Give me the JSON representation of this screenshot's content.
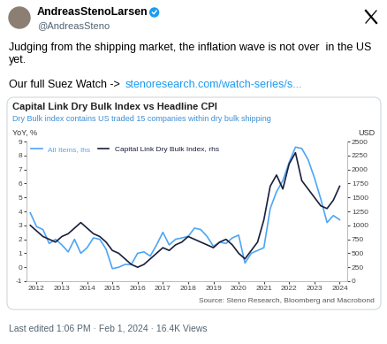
{
  "tweet": {
    "author": "AndreasStenoLarsen",
    "handle": "@AndreasSteno",
    "text": "Judging from the shipping market, the inflation wave is not over  in the US yet.",
    "link_prefix": "Our full Suez Watch ->",
    "link": "stenoresearch.com/watch-series/s...",
    "footer": "Last edited 1:06 PM · Feb 1, 2024 · 16.4K Views"
  },
  "chart_data": {
    "type": "line",
    "title": "Capital Link Dry Bulk Index vs Headline CPI",
    "subtitle": "Dry Bulk index contains US traded 15 companies within dry bulk shipping",
    "y_label": "YoY, %",
    "y2_label": "USD",
    "source": "Source: Steno Research, Bloomberg and Macrobond",
    "x": [
      2011.75,
      2012.0,
      2012.25,
      2012.5,
      2012.75,
      2013.0,
      2013.25,
      2013.5,
      2013.75,
      2014.0,
      2014.25,
      2014.5,
      2014.75,
      2015.0,
      2015.25,
      2015.5,
      2015.75,
      2016.0,
      2016.25,
      2016.5,
      2016.75,
      2017.0,
      2017.25,
      2017.5,
      2017.75,
      2018.0,
      2018.25,
      2018.5,
      2018.75,
      2019.0,
      2019.25,
      2019.5,
      2019.75,
      2020.0,
      2020.25,
      2020.5,
      2020.75,
      2021.0,
      2021.25,
      2021.5,
      2021.75,
      2022.0,
      2022.25,
      2022.5,
      2022.75,
      2023.0,
      2023.25,
      2023.5,
      2023.75,
      2024.0
    ],
    "series": [
      {
        "name": "All Items, lhs",
        "color": "#4da6f5",
        "line_style": "solid",
        "values": [
          3.9,
          2.9,
          2.7,
          1.7,
          2.0,
          1.6,
          1.1,
          2.0,
          1.0,
          1.4,
          2.1,
          2.0,
          1.3,
          -0.1,
          0.0,
          0.2,
          0.2,
          1.0,
          1.1,
          0.8,
          1.6,
          2.5,
          1.6,
          2.0,
          2.1,
          2.2,
          2.8,
          2.7,
          2.2,
          1.5,
          1.8,
          1.7,
          2.1,
          2.3,
          0.3,
          1.0,
          1.2,
          1.4,
          4.2,
          5.4,
          6.2,
          7.5,
          8.6,
          8.5,
          7.7,
          6.4,
          4.9,
          3.2,
          3.7,
          3.4
        ]
      },
      {
        "name": "Capital Link Dry Bulk Index, rhs",
        "color": "#1a1f3c",
        "line_style": "solid",
        "axis": "y2",
        "values": [
          1000,
          900,
          800,
          750,
          700,
          800,
          850,
          950,
          1050,
          950,
          850,
          800,
          700,
          550,
          500,
          400,
          300,
          250,
          300,
          400,
          500,
          600,
          550,
          650,
          700,
          800,
          750,
          700,
          650,
          600,
          700,
          750,
          650,
          500,
          400,
          550,
          700,
          1100,
          1700,
          1900,
          1650,
          2100,
          2300,
          1800,
          1650,
          1500,
          1350,
          1300,
          1450,
          1700
        ]
      }
    ],
    "xlim": [
      2011.6,
      2024.3
    ],
    "xticks": [
      2012,
      2013,
      2014,
      2015,
      2016,
      2017,
      2018,
      2019,
      2020,
      2021,
      2022,
      2023,
      2024
    ],
    "ylim": [
      -1,
      9
    ],
    "yticks": [
      -1,
      0,
      1,
      2,
      3,
      4,
      5,
      6,
      7,
      8,
      9
    ],
    "y2lim": [
      0,
      2500
    ],
    "y2ticks": [
      0,
      250,
      500,
      750,
      1000,
      1250,
      1500,
      1750,
      2000,
      2250,
      2500
    ],
    "grid": false,
    "legend": "upper left"
  }
}
